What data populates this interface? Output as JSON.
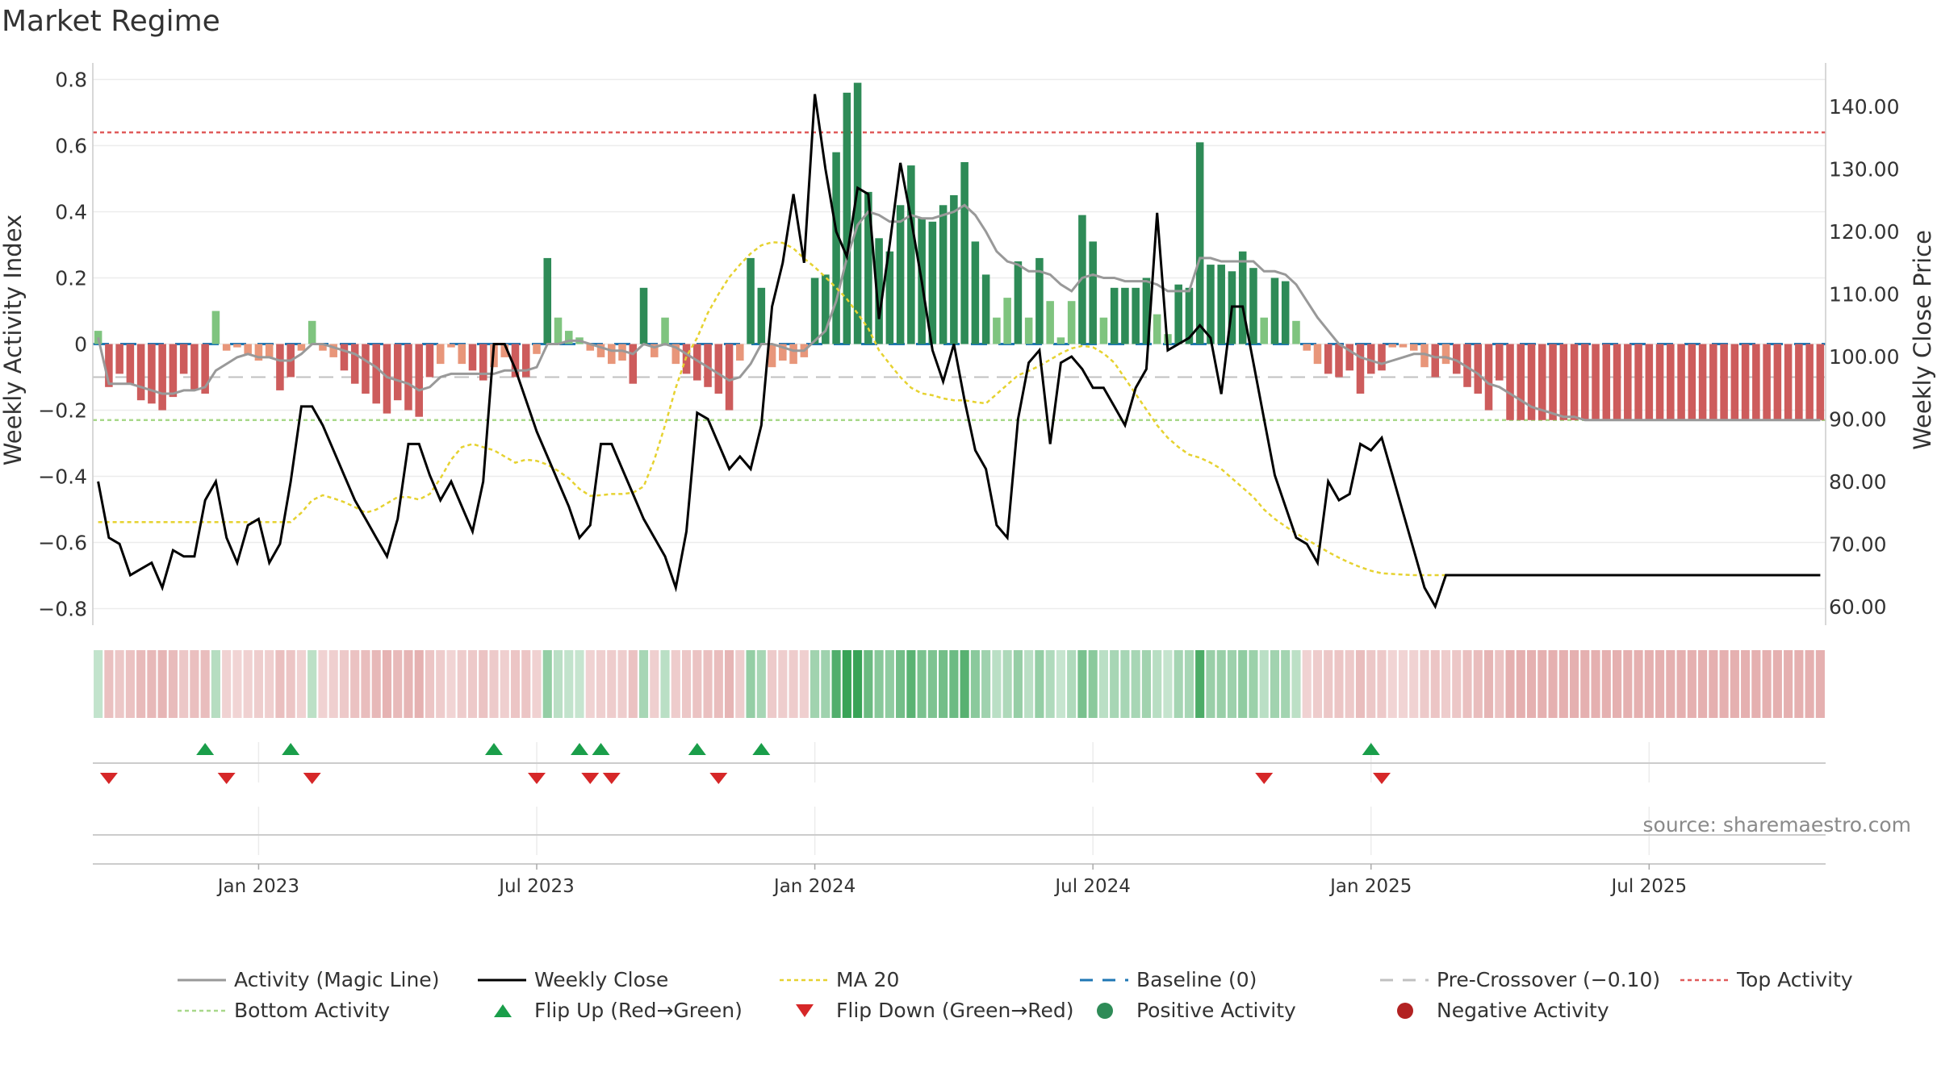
{
  "title": "Market Regime",
  "source": "source: sharemaestro.com",
  "colors": {
    "pos_strong": "#2e8b57",
    "pos_weak": "#7fc47f",
    "neg_strong": "#cd5c5c",
    "neg_weak": "#e8967a",
    "magic_line": "#999999",
    "close": "#000000",
    "ma20": "#e6d230",
    "baseline": "#1f77b4",
    "pre_crossover": "#c0c0c0",
    "top_activity": "#e05a5a",
    "bottom_activity": "#a8d88a",
    "flip_up": "#1a9e4a",
    "flip_down": "#d62728"
  },
  "legend": [
    {
      "label": "Activity (Magic Line)",
      "style": "line",
      "color": "#999999"
    },
    {
      "label": "Weekly Close",
      "style": "line",
      "color": "#000000"
    },
    {
      "label": "MA 20",
      "style": "dotted",
      "color": "#e6d230"
    },
    {
      "label": "Baseline (0)",
      "style": "dashed",
      "color": "#1f77b4"
    },
    {
      "label": "Pre-Crossover (−0.10)",
      "style": "dashed",
      "color": "#c0c0c0"
    },
    {
      "label": "Top Activity",
      "style": "dotted",
      "color": "#e05a5a"
    },
    {
      "label": "Bottom Activity",
      "style": "dotted",
      "color": "#a8d88a"
    },
    {
      "label": "Flip Up (Red→Green)",
      "style": "triangle-up",
      "color": "#1a9e4a"
    },
    {
      "label": "Flip Down (Green→Red)",
      "style": "triangle-down",
      "color": "#d62728"
    },
    {
      "label": "Positive Activity",
      "style": "circle",
      "color": "#2e8b57"
    },
    {
      "label": "Negative Activity",
      "style": "circle",
      "color": "#b22222"
    }
  ],
  "chart_data": {
    "type": "bar",
    "x_axis": {
      "ticks": [
        "Jan 2023",
        "Jul 2023",
        "Jan 2024",
        "Jul 2024",
        "Jan 2025",
        "Jul 2025"
      ],
      "tick_weeks": [
        15,
        41,
        67,
        93,
        119,
        145
      ]
    },
    "y_left": {
      "label": "Weekly Activity Index",
      "ylim": [
        -0.85,
        0.85
      ],
      "ticks": [
        "0.8",
        "0.6",
        "0.4",
        "0.2",
        "0",
        "−0.2",
        "−0.4",
        "−0.6",
        "−0.8"
      ],
      "tick_values": [
        0.8,
        0.6,
        0.4,
        0.2,
        0,
        -0.2,
        -0.4,
        -0.6,
        -0.8
      ]
    },
    "y_right": {
      "label": "Weekly Close Price",
      "ylim": [
        57,
        147
      ],
      "ticks": [
        "140.00",
        "130.00",
        "120.00",
        "110.00",
        "100.00",
        "90.00",
        "80.00",
        "70.00",
        "60.00"
      ],
      "tick_values": [
        140,
        130,
        120,
        110,
        100,
        90,
        80,
        70,
        60
      ]
    },
    "reference_lines": {
      "baseline": 0,
      "pre_crossover": -0.1,
      "top_activity": 0.64,
      "bottom_activity": -0.23
    },
    "series": [
      {
        "name": "Weekly Activity Index",
        "type": "bar",
        "values": [
          0.04,
          -0.13,
          -0.09,
          -0.12,
          -0.17,
          -0.18,
          -0.2,
          -0.16,
          -0.09,
          -0.14,
          -0.15,
          0.1,
          -0.02,
          -0.01,
          -0.03,
          -0.05,
          -0.04,
          -0.14,
          -0.1,
          -0.02,
          0.07,
          -0.02,
          -0.04,
          -0.08,
          -0.12,
          -0.15,
          -0.18,
          -0.21,
          -0.17,
          -0.2,
          -0.22,
          -0.1,
          -0.06,
          -0.01,
          -0.06,
          -0.08,
          -0.11,
          -0.07,
          -0.04,
          -0.1,
          -0.1,
          -0.03,
          0.26,
          0.08,
          0.04,
          0.02,
          -0.02,
          -0.04,
          -0.06,
          -0.05,
          -0.12,
          0.17,
          -0.04,
          0.08,
          -0.06,
          -0.09,
          -0.11,
          -0.13,
          -0.15,
          -0.2,
          -0.05,
          0.26,
          0.17,
          -0.07,
          -0.05,
          -0.06,
          -0.04,
          0.2,
          0.21,
          0.58,
          0.76,
          0.79,
          0.46,
          0.32,
          0.28,
          0.42,
          0.54,
          0.38,
          0.37,
          0.42,
          0.45,
          0.55,
          0.31,
          0.21,
          0.08,
          0.14,
          0.25,
          0.08,
          0.26,
          0.13,
          0.02,
          0.13,
          0.39,
          0.31,
          0.08,
          0.17,
          0.17,
          0.17,
          0.2,
          0.09,
          0.03,
          0.18,
          0.17,
          0.61,
          0.24,
          0.24,
          0.22,
          0.28,
          0.23,
          0.08,
          0.2,
          0.19,
          0.07,
          -0.02,
          -0.06,
          -0.09,
          -0.1,
          -0.08,
          -0.15,
          -0.09,
          -0.08,
          -0.01,
          -0.01,
          -0.02,
          -0.07,
          -0.1,
          -0.06,
          -0.09,
          -0.13,
          -0.15,
          -0.2,
          -0.11,
          -0.23,
          -0.23,
          -0.23,
          -0.23,
          -0.23,
          -0.23,
          -0.23,
          -0.23,
          -0.23,
          -0.23,
          -0.23,
          -0.23,
          -0.23,
          -0.23,
          -0.23,
          -0.23,
          -0.23,
          -0.23,
          -0.23,
          -0.23,
          -0.23,
          -0.23,
          -0.23,
          -0.23,
          -0.23,
          -0.23,
          -0.23,
          -0.23,
          -0.23,
          -0.23
        ]
      },
      {
        "name": "Activity (Magic Line)",
        "type": "line",
        "values": [
          0.02,
          -0.12,
          -0.12,
          -0.12,
          -0.13,
          -0.14,
          -0.15,
          -0.15,
          -0.14,
          -0.14,
          -0.13,
          -0.08,
          -0.06,
          -0.04,
          -0.03,
          -0.04,
          -0.04,
          -0.05,
          -0.05,
          -0.03,
          0.0,
          0.0,
          -0.01,
          -0.02,
          -0.03,
          -0.05,
          -0.07,
          -0.1,
          -0.11,
          -0.12,
          -0.14,
          -0.13,
          -0.1,
          -0.09,
          -0.09,
          -0.09,
          -0.09,
          -0.09,
          -0.08,
          -0.08,
          -0.08,
          -0.07,
          0.0,
          0.0,
          0.01,
          0.01,
          0.0,
          -0.01,
          -0.02,
          -0.02,
          -0.03,
          0.0,
          -0.01,
          0.0,
          -0.01,
          -0.03,
          -0.05,
          -0.07,
          -0.09,
          -0.11,
          -0.1,
          -0.06,
          0.0,
          0.0,
          -0.01,
          -0.02,
          -0.02,
          0.01,
          0.04,
          0.13,
          0.26,
          0.36,
          0.4,
          0.39,
          0.37,
          0.37,
          0.39,
          0.38,
          0.38,
          0.39,
          0.4,
          0.42,
          0.39,
          0.34,
          0.28,
          0.25,
          0.24,
          0.22,
          0.22,
          0.21,
          0.18,
          0.16,
          0.2,
          0.21,
          0.2,
          0.2,
          0.19,
          0.19,
          0.19,
          0.18,
          0.16,
          0.16,
          0.16,
          0.26,
          0.26,
          0.25,
          0.25,
          0.25,
          0.25,
          0.22,
          0.22,
          0.21,
          0.18,
          0.13,
          0.08,
          0.04,
          0.0,
          -0.02,
          -0.04,
          -0.05,
          -0.06,
          -0.05,
          -0.04,
          -0.03,
          -0.03,
          -0.04,
          -0.04,
          -0.05,
          -0.07,
          -0.09,
          -0.12,
          -0.13,
          -0.15,
          -0.17,
          -0.19,
          -0.2,
          -0.21,
          -0.22,
          -0.22,
          -0.23,
          -0.23,
          -0.23,
          -0.23,
          -0.23,
          -0.23,
          -0.23,
          -0.23,
          -0.23,
          -0.23,
          -0.23,
          -0.23,
          -0.23,
          -0.23,
          -0.23,
          -0.23,
          -0.23,
          -0.23,
          -0.23,
          -0.23,
          -0.23,
          -0.23,
          -0.23
        ]
      },
      {
        "name": "Weekly Close",
        "type": "line",
        "axis": "right",
        "values": [
          80,
          71,
          70,
          65,
          66,
          67,
          63,
          69,
          68,
          68,
          77,
          80,
          71,
          67,
          73,
          74,
          67,
          70,
          80,
          92,
          92,
          89,
          85,
          81,
          77,
          74,
          71,
          68,
          74,
          86,
          86,
          81,
          77,
          80,
          76,
          72,
          80,
          102,
          102,
          98,
          93,
          88,
          84,
          80,
          76,
          71,
          73,
          86,
          86,
          82,
          78,
          74,
          71,
          68,
          63,
          72,
          91,
          90,
          86,
          82,
          84,
          82,
          89,
          108,
          115,
          126,
          115,
          142,
          130,
          120,
          116,
          127,
          126,
          106,
          118,
          131,
          122,
          112,
          101,
          96,
          102,
          93,
          85,
          82,
          73,
          71,
          90,
          99,
          101,
          86,
          99,
          100,
          98,
          95,
          95,
          92,
          89,
          95,
          98,
          123,
          101,
          102,
          103,
          105,
          103,
          94,
          108,
          108,
          99,
          90,
          81,
          76,
          71,
          70,
          67,
          80,
          77,
          78,
          86,
          85,
          87,
          81,
          75,
          69,
          63,
          60,
          65,
          65,
          65,
          65,
          65,
          65,
          65,
          65,
          65,
          65,
          65,
          65,
          65,
          65,
          65,
          65,
          65,
          65,
          65,
          65,
          65,
          65,
          65,
          65,
          65,
          65,
          65,
          65,
          65,
          65,
          65,
          65,
          65,
          65,
          65,
          65
        ]
      },
      {
        "name": "MA 20",
        "type": "line",
        "axis": "right",
        "values": [
          73.5,
          73.5,
          73.5,
          73.5,
          73.5,
          73.5,
          73.5,
          73.5,
          73.5,
          73.5,
          73.5,
          73.5,
          73.5,
          73.5,
          73.5,
          73.5,
          73.5,
          73.5,
          73.5,
          75,
          77,
          77.8,
          77.3,
          76.7,
          75.9,
          75,
          75.5,
          76.5,
          77.5,
          77.5,
          77.1,
          78,
          80.5,
          83.5,
          85.5,
          86,
          85.5,
          85,
          84,
          83,
          83.5,
          83.3,
          82.7,
          81.7,
          80.5,
          78.8,
          77.7,
          77.8,
          78,
          78,
          78.2,
          79.2,
          83.5,
          89,
          95,
          100,
          103,
          107,
          110,
          112.7,
          114.7,
          116.5,
          117.8,
          118.3,
          118.2,
          117.3,
          115.7,
          114.3,
          112.7,
          111,
          109.2,
          106.9,
          104.5,
          101,
          98.8,
          96.7,
          95,
          94.1,
          93.8,
          93.3,
          93,
          93,
          92.7,
          92.5,
          94,
          95.5,
          97,
          97.7,
          98.5,
          99.5,
          100.5,
          101.3,
          101.7,
          101.5,
          100.5,
          99,
          96.5,
          94,
          91.5,
          89,
          87,
          85.5,
          84.3,
          83.8,
          83,
          82,
          80.5,
          79,
          77.5,
          75.5,
          74,
          72.8,
          71.7,
          70.7,
          69.7,
          68.7,
          67.8,
          67,
          66.3,
          65.7,
          65.3,
          65.2,
          65.1,
          65,
          65,
          65,
          65,
          65,
          65,
          65,
          65,
          65,
          65,
          65,
          65,
          65,
          65,
          65
        ]
      },
      {
        "name": "Flip Up (Red→Green)",
        "type": "marker",
        "weeks": [
          10,
          18,
          37,
          45,
          47,
          56,
          62,
          119
        ]
      },
      {
        "name": "Flip Down (Green→Red)",
        "type": "marker",
        "weeks": [
          1,
          12,
          20,
          41,
          46,
          48,
          58,
          109,
          120
        ]
      }
    ]
  }
}
